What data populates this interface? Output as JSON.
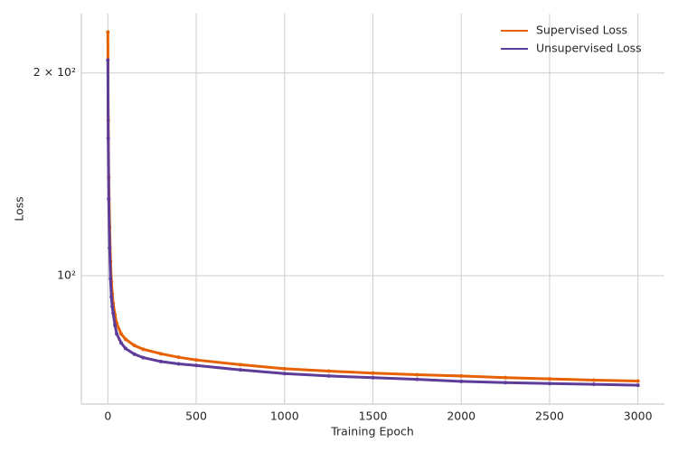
{
  "chart_data": {
    "type": "line",
    "x_label": "Training Epoch",
    "y_label": "Loss",
    "x": [
      0,
      2,
      5,
      10,
      15,
      20,
      25,
      30,
      40,
      50,
      75,
      100,
      150,
      200,
      300,
      400,
      500,
      750,
      1000,
      1250,
      1500,
      1750,
      2000,
      2250,
      2500,
      2750,
      3000
    ],
    "series": [
      {
        "name": "Supervised Loss",
        "color": "#e66101",
        "values": [
          230,
          170,
          140,
          118,
          105,
          98,
          94,
          91,
          87.5,
          85,
          82,
          80.5,
          78.8,
          77.8,
          76.6,
          75.7,
          75,
          73.8,
          72.8,
          72.2,
          71.7,
          71.3,
          71,
          70.6,
          70.3,
          70,
          69.8
        ]
      },
      {
        "name": "Unsupervised Loss",
        "color": "#5e3c99",
        "values": [
          209,
          160,
          130,
          110,
          99,
          93,
          90,
          88,
          84.5,
          82,
          79.5,
          78,
          76.5,
          75.6,
          74.6,
          74,
          73.6,
          72.5,
          71.6,
          71,
          70.6,
          70.2,
          69.7,
          69.4,
          69.2,
          69,
          68.8
        ]
      }
    ],
    "xlim": [
      -150,
      3150
    ],
    "xticks": [
      0,
      500,
      1000,
      1500,
      2000,
      2500,
      3000
    ],
    "ylim": [
      64.5,
      245
    ],
    "yscale": "log",
    "yticks": [
      {
        "value": 100,
        "label": "10²"
      },
      {
        "value": 200,
        "label": "2 × 10²"
      }
    ],
    "grid": true,
    "legend": "upper right"
  }
}
